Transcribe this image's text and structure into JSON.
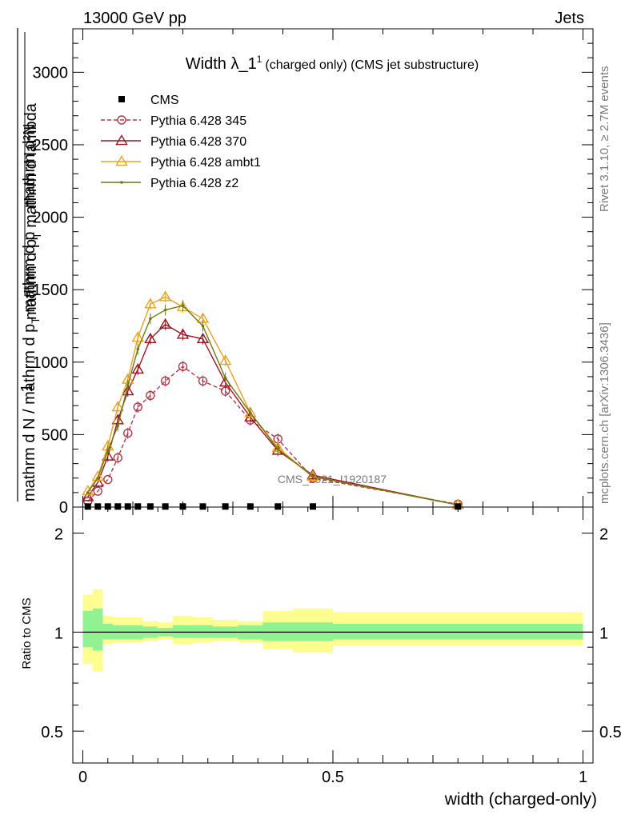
{
  "header": {
    "left": "13000 GeV pp",
    "right": "Jets"
  },
  "side_text": {
    "rivet": "Rivet 3.1.10, ≥ 2.7M events",
    "mcplots": "mcplots.cern.ch [arXiv:1306.3436]"
  },
  "chart_data": [
    {
      "type": "line",
      "title_main": "Width λ_1",
      "title_sup": "1",
      "title_rest": "(charged only) (CMS jet substructure)",
      "ylabel_top": "mathrm d²N",
      "ylabel_bottom": "mathrm d p",
      "ylabel_bottom_sub": "T",
      "ylabel_bottom_rest": " mathrm d lambda",
      "ylabel_frac_num": "1",
      "ylabel_frac_den": "mathrm d N / mathrm d p",
      "ylabel_frac_den_sub": "T",
      "ylabel_frac_den_rest": " mathrm d p",
      "ylim": [
        0,
        3300
      ],
      "xlim": [
        -0.02,
        1.02
      ],
      "yticks": [
        0,
        500,
        1000,
        1500,
        2000,
        2500,
        3000
      ],
      "ytick_labels": [
        "0",
        "500",
        "1000",
        "1500",
        "2000",
        "2500",
        "3000"
      ],
      "watermark": "CMS_2021_I1920187",
      "legend_position": "top-left",
      "legend": [
        {
          "label": "CMS",
          "color": "#000000",
          "marker": "square"
        },
        {
          "label": "Pythia 6.428 345",
          "color": "#b2374a",
          "marker": "circle"
        },
        {
          "label": "Pythia 6.428 370",
          "color": "#9b1420",
          "marker": "triangle"
        },
        {
          "label": "Pythia 6.428 ambt1",
          "color": "#eca21f",
          "marker": "triangle"
        },
        {
          "label": "Pythia 6.428 z2",
          "color": "#6f7a12",
          "marker": "dot"
        }
      ],
      "x": [
        0.01,
        0.03,
        0.05,
        0.07,
        0.09,
        0.11,
        0.135,
        0.165,
        0.2,
        0.24,
        0.285,
        0.335,
        0.39,
        0.46,
        0.75
      ],
      "series": [
        {
          "name": "CMS",
          "values": [
            4,
            4,
            4,
            4,
            4,
            4,
            4,
            4,
            4,
            4,
            4,
            4,
            4,
            4,
            4
          ],
          "color": "#000000",
          "marker": "square"
        },
        {
          "name": "Pythia 6.428 345",
          "values": [
            40,
            110,
            190,
            340,
            510,
            690,
            770,
            870,
            970,
            870,
            800,
            600,
            470,
            200,
            20
          ],
          "color": "#b2374a",
          "marker": "circle"
        },
        {
          "name": "Pythia 6.428 370",
          "values": [
            70,
            170,
            350,
            600,
            800,
            950,
            1160,
            1260,
            1190,
            1160,
            860,
            620,
            390,
            220,
            15
          ],
          "color": "#9b1420",
          "marker": "triangle"
        },
        {
          "name": "Pythia 6.428 ambt1",
          "values": [
            110,
            210,
            420,
            690,
            880,
            1170,
            1400,
            1450,
            1380,
            1300,
            1010,
            650,
            410,
            210,
            15
          ],
          "color": "#eca21f",
          "marker": "triangle"
        },
        {
          "name": "Pythia 6.428 z2",
          "values": [
            100,
            200,
            390,
            560,
            840,
            1090,
            1300,
            1360,
            1390,
            1250,
            890,
            650,
            400,
            210,
            15
          ],
          "color": "#6f7a12",
          "marker": "dot"
        }
      ]
    },
    {
      "type": "area",
      "ylabel": "Ratio to CMS",
      "xlabel": "width (charged-only)",
      "xlim": [
        -0.02,
        1.02
      ],
      "ylim": [
        0.4,
        2.4
      ],
      "log_y": true,
      "yticks": [
        0.5,
        1,
        2
      ],
      "ytick_labels": [
        "0.5",
        "1",
        "2"
      ],
      "xticks": [
        0,
        0.5,
        1
      ],
      "xtick_labels": [
        "0",
        "0.5",
        "1"
      ],
      "bin_edges": [
        0,
        0.02,
        0.04,
        0.06,
        0.08,
        0.1,
        0.12,
        0.15,
        0.18,
        0.22,
        0.26,
        0.31,
        0.36,
        0.42,
        0.5,
        1.0
      ],
      "band_inner_lo": [
        0.9,
        0.88,
        0.95,
        0.95,
        0.95,
        0.95,
        0.96,
        0.97,
        0.96,
        0.96,
        0.96,
        0.95,
        0.94,
        0.94,
        0.95
      ],
      "band_inner_hi": [
        1.16,
        1.18,
        1.06,
        1.05,
        1.05,
        1.05,
        1.04,
        1.03,
        1.05,
        1.05,
        1.04,
        1.05,
        1.07,
        1.07,
        1.06
      ],
      "band_outer_lo": [
        0.8,
        0.76,
        0.92,
        0.93,
        0.93,
        0.93,
        0.94,
        0.95,
        0.92,
        0.93,
        0.94,
        0.93,
        0.89,
        0.87,
        0.91
      ],
      "band_outer_hi": [
        1.3,
        1.35,
        1.12,
        1.11,
        1.11,
        1.11,
        1.08,
        1.07,
        1.12,
        1.11,
        1.09,
        1.08,
        1.16,
        1.18,
        1.15
      ],
      "inner_color": "#91f291",
      "outer_color": "#fdfd90",
      "reference": 1
    }
  ]
}
